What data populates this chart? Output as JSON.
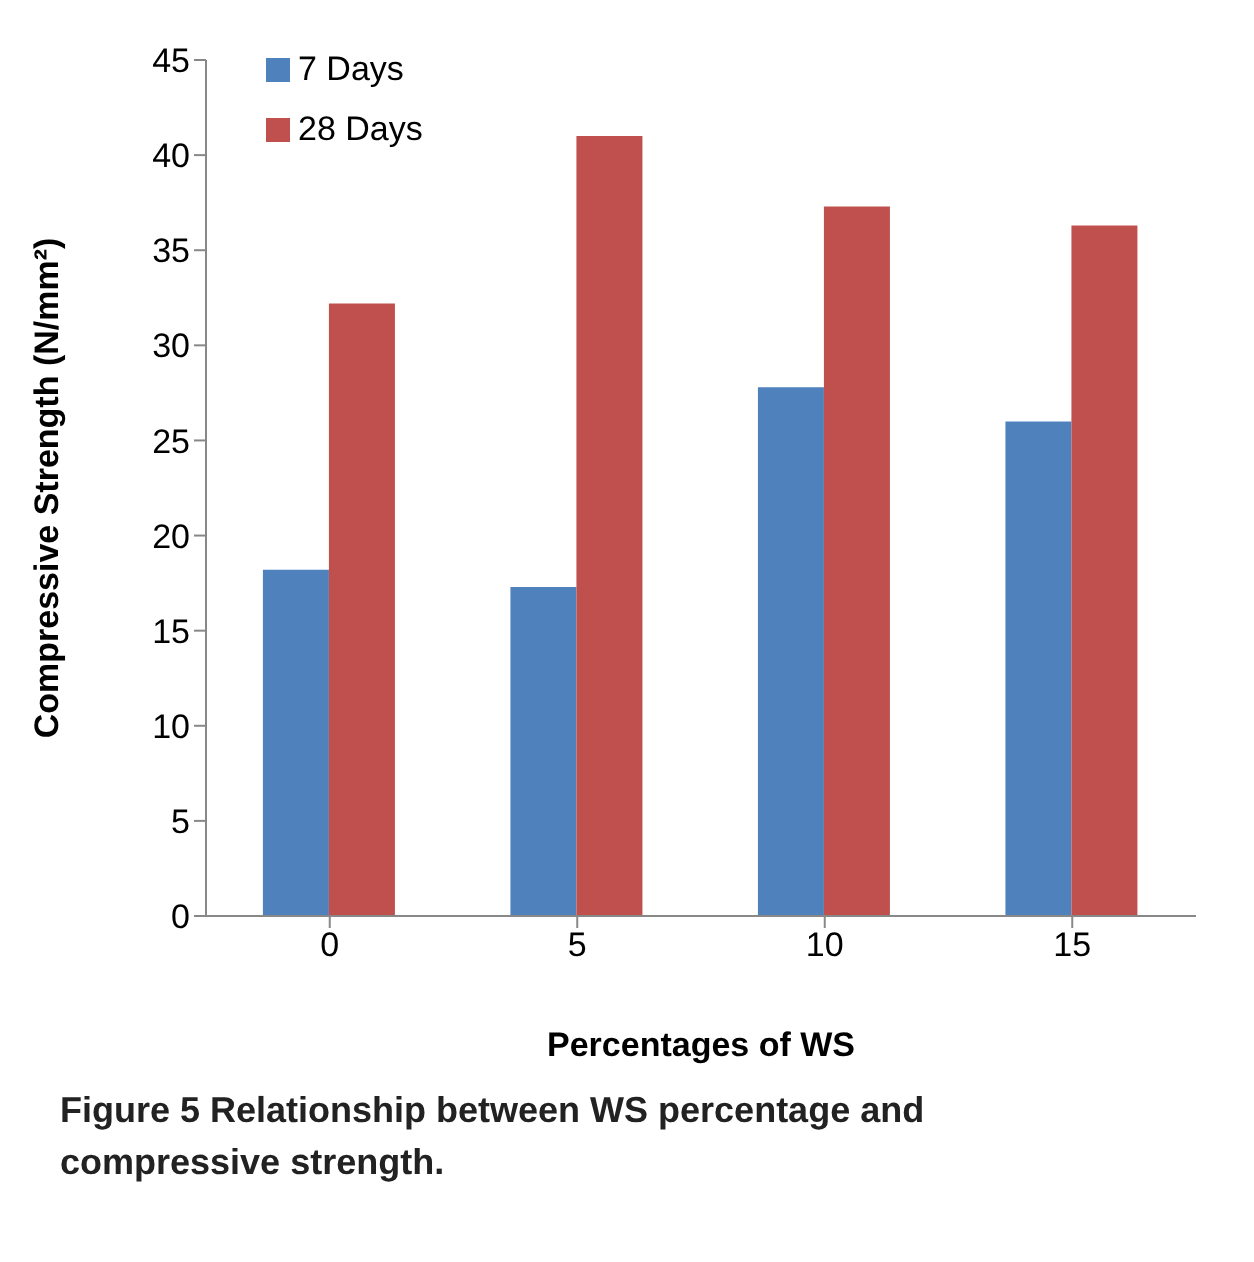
{
  "chart_data": {
    "type": "bar",
    "categories": [
      "0",
      "5",
      "10",
      "15"
    ],
    "series": [
      {
        "name": "7 Days",
        "color": "#4f81bd",
        "values": [
          18.2,
          17.3,
          27.8,
          26.0
        ]
      },
      {
        "name": "28 Days",
        "color": "#c0504d",
        "values": [
          32.2,
          41.0,
          37.3,
          36.3
        ]
      }
    ],
    "xlabel": "Percentages of WS",
    "ylabel": "Compressive Strength (N/mm²)",
    "ylim": [
      0,
      45
    ],
    "yticks": [
      0,
      5,
      10,
      15,
      20,
      25,
      30,
      35,
      40,
      45
    ],
    "grid": false,
    "legend": "top left",
    "annotations": [
      "Figure 5 Relationship between WS percentage and compressive strength."
    ]
  }
}
